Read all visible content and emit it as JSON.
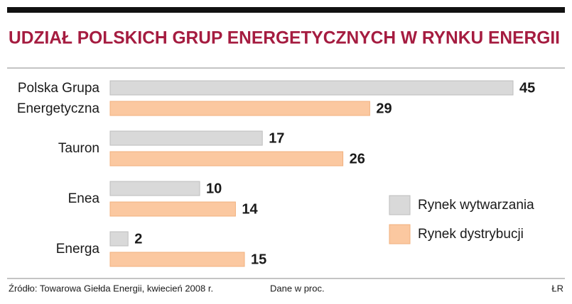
{
  "chart_data": {
    "type": "bar",
    "orientation": "horizontal",
    "title": "UDZIAŁ POLSKICH GRUP ENERGETYCZNYCH W RYNKU ENERGII",
    "categories": [
      "Polska Grupa\nEnergetyczna",
      "Tauron",
      "Enea",
      "Energa"
    ],
    "series": [
      {
        "name": "Rynek wytwarzania",
        "color": "#d9d9d9",
        "values": [
          45,
          17,
          10,
          2
        ]
      },
      {
        "name": "Rynek dystrybucji",
        "color": "#fbc8a0",
        "values": [
          29,
          26,
          14,
          15
        ]
      }
    ],
    "xlim": [
      0,
      50
    ],
    "legend": "lower right",
    "source": "Źródło: Towarowa Giełda Energii, kwiecień 2008 r.",
    "note": "Dane w proc.",
    "credit": "ŁR"
  }
}
